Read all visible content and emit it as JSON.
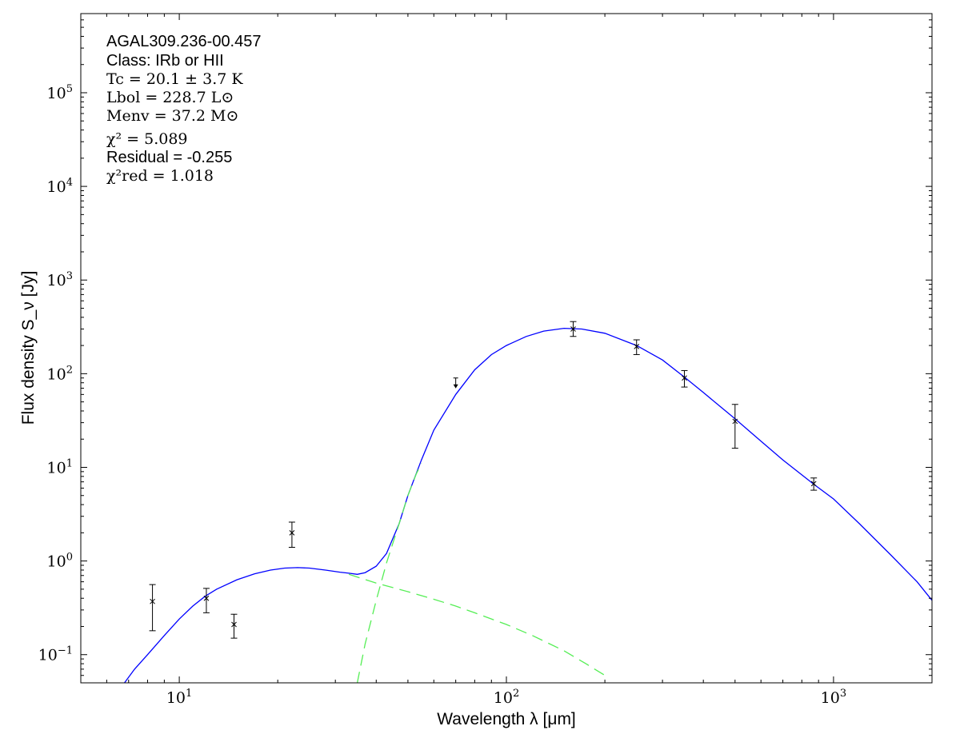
{
  "chart_data": {
    "type": "scatter",
    "xscale": "log",
    "yscale": "log",
    "xlim": [
      5,
      2000
    ],
    "ylim": [
      0.05,
      700000
    ],
    "xlabel": "Wavelength λ [μm]",
    "ylabel": "Flux density S_ν [Jy]",
    "x_ticks": [
      {
        "value": 10,
        "base": "10",
        "exp": "1"
      },
      {
        "value": 100,
        "base": "10",
        "exp": "2"
      },
      {
        "value": 1000,
        "base": "10",
        "exp": "3"
      }
    ],
    "y_ticks": [
      {
        "value": 0.1,
        "base": "10",
        "exp": "−1"
      },
      {
        "value": 1,
        "base": "10",
        "exp": "0"
      },
      {
        "value": 10,
        "base": "10",
        "exp": "1"
      },
      {
        "value": 100,
        "base": "10",
        "exp": "2"
      },
      {
        "value": 1000,
        "base": "10",
        "exp": "3"
      },
      {
        "value": 10000,
        "base": "10",
        "exp": "4"
      },
      {
        "value": 100000,
        "base": "10",
        "exp": "5"
      }
    ],
    "annotations": {
      "source": "AGAL309.236-00.457",
      "class": "Class: IRb or HII",
      "tc": "Tc = 20.1 ± 3.7 K",
      "lbol": "Lbol = 228.7 L⊙",
      "menv": "Menv = 37.2 M⊙",
      "chi2": "χ² = 5.089",
      "residual": "Residual = -0.255",
      "chi2red": "χ²red = 1.018"
    },
    "measurements": [
      {
        "x": 8.28,
        "y": 0.37,
        "ylo": 0.18,
        "yhi": 0.56
      },
      {
        "x": 12.1,
        "y": 0.4,
        "ylo": 0.28,
        "yhi": 0.51
      },
      {
        "x": 14.7,
        "y": 0.21,
        "ylo": 0.15,
        "yhi": 0.27
      },
      {
        "x": 22.1,
        "y": 2.0,
        "ylo": 1.4,
        "yhi": 2.6
      },
      {
        "x": 160,
        "y": 300,
        "ylo": 250,
        "yhi": 360
      },
      {
        "x": 250,
        "y": 195,
        "ylo": 160,
        "yhi": 230
      },
      {
        "x": 350,
        "y": 90,
        "ylo": 72,
        "yhi": 108
      },
      {
        "x": 500,
        "y": 31,
        "ylo": 16,
        "yhi": 47
      },
      {
        "x": 870,
        "y": 6.7,
        "ylo": 5.7,
        "yhi": 7.7
      }
    ],
    "upper_limits": [
      {
        "x": 70,
        "y": 90
      }
    ],
    "series": [
      {
        "type": "line",
        "color": "#0000ff",
        "style": "solid",
        "points": [
          [
            6.8,
            0.05
          ],
          [
            7.3,
            0.07
          ],
          [
            8,
            0.1
          ],
          [
            9,
            0.16
          ],
          [
            10,
            0.24
          ],
          [
            11,
            0.33
          ],
          [
            12,
            0.42
          ],
          [
            13,
            0.5
          ],
          [
            15,
            0.63
          ],
          [
            17,
            0.73
          ],
          [
            19,
            0.8
          ],
          [
            21,
            0.84
          ],
          [
            23,
            0.85
          ],
          [
            25,
            0.84
          ],
          [
            28,
            0.8
          ],
          [
            31,
            0.76
          ],
          [
            33,
            0.74
          ],
          [
            35,
            0.72
          ],
          [
            37,
            0.75
          ],
          [
            40,
            0.88
          ],
          [
            43,
            1.2
          ],
          [
            47,
            2.5
          ],
          [
            50,
            5
          ],
          [
            55,
            12
          ],
          [
            60,
            25
          ],
          [
            70,
            60
          ],
          [
            80,
            110
          ],
          [
            90,
            160
          ],
          [
            100,
            200
          ],
          [
            115,
            250
          ],
          [
            130,
            285
          ],
          [
            150,
            305
          ],
          [
            170,
            300
          ],
          [
            200,
            270
          ],
          [
            250,
            200
          ],
          [
            300,
            140
          ],
          [
            350,
            92
          ],
          [
            400,
            63
          ],
          [
            500,
            33
          ],
          [
            600,
            19
          ],
          [
            700,
            12
          ],
          [
            870,
            6.6
          ],
          [
            1000,
            4.6
          ],
          [
            1200,
            2.5
          ],
          [
            1500,
            1.15
          ],
          [
            1800,
            0.6
          ],
          [
            2000,
            0.38
          ]
        ]
      },
      {
        "type": "line",
        "color": "#55ee55",
        "style": "dashed",
        "points": [
          [
            33,
            0.72
          ],
          [
            40,
            0.58
          ],
          [
            50,
            0.47
          ],
          [
            60,
            0.39
          ],
          [
            70,
            0.33
          ],
          [
            80,
            0.28
          ],
          [
            100,
            0.21
          ],
          [
            120,
            0.16
          ],
          [
            150,
            0.11
          ],
          [
            175,
            0.08
          ],
          [
            200,
            0.06
          ]
        ]
      },
      {
        "type": "line",
        "color": "#55ee55",
        "style": "dashed",
        "points": [
          [
            35,
            0.05
          ],
          [
            37,
            0.13
          ],
          [
            40,
            0.38
          ],
          [
            43,
            0.95
          ],
          [
            47,
            2.5
          ],
          [
            50,
            5
          ],
          [
            53,
            8.5
          ],
          [
            55,
            11
          ]
        ]
      }
    ]
  }
}
